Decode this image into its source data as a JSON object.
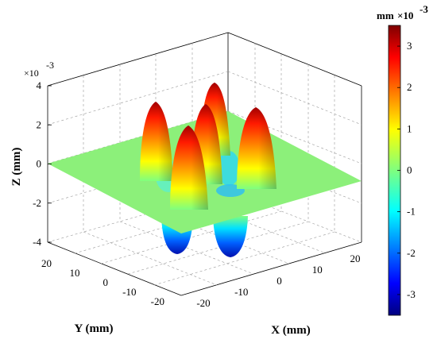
{
  "chart_data": {
    "type": "surface3d",
    "title": "",
    "xlabel": "X (mm)",
    "ylabel": "Y (mm)",
    "zlabel": "Z (mm)",
    "x_ticks": [
      "-20",
      "-10",
      "0",
      "10",
      "20"
    ],
    "y_ticks": [
      "-20",
      "-10",
      "0",
      "10",
      "20"
    ],
    "z_ticks": [
      "-4",
      "-2",
      "0",
      "2",
      "4"
    ],
    "z_multiplier": "×10",
    "z_exponent": "-3",
    "xlim": [
      -25,
      25
    ],
    "ylim": [
      -25,
      25
    ],
    "zlim": [
      -0.004,
      0.004
    ],
    "grid": true,
    "colormap": "jet",
    "colorbar": {
      "unit": "mm",
      "multiplier": "×10",
      "exponent": "-3",
      "ticks": [
        "3",
        "2",
        "1",
        "0",
        "-1",
        "-2",
        "-3"
      ],
      "range": [
        -3.5,
        3.5
      ]
    },
    "surface": {
      "description": "flat plane at z=0 with peaks and troughs",
      "peaks": [
        {
          "x": -10,
          "y": 10,
          "z": 0.0034
        },
        {
          "x": 10,
          "y": 10,
          "z": 0.0034
        },
        {
          "x": 0,
          "y": 0,
          "z": 0.0034
        },
        {
          "x": -10,
          "y": -10,
          "z": 0.0034
        },
        {
          "x": 10,
          "y": -10,
          "z": 0.0034
        },
        {
          "x": -5,
          "y": 5,
          "z": -0.0034
        },
        {
          "x": 5,
          "y": -5,
          "z": -0.0034
        }
      ]
    },
    "colors": {
      "plane": "#8cf07a",
      "peak": "#b01010",
      "trough": "#0a2fc8"
    }
  }
}
